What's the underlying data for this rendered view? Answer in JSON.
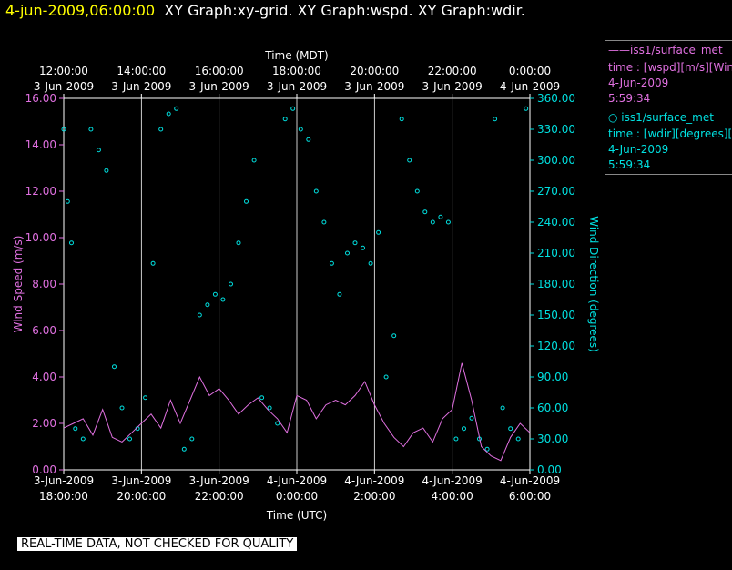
{
  "header": {
    "time": "4-jun-2009,06:00:00",
    "graphs": "XY Graph:xy-grid.  XY Graph:wspd.  XY Graph:wdir."
  },
  "legend": {
    "series1": {
      "name": "iss1/surface_met",
      "var": "time : [wspd][m/s][Wind",
      "date": "4-Jun-2009",
      "time": "5:59:34"
    },
    "series2": {
      "name": "iss1/surface_met",
      "var": "time : [wdir][degrees][V",
      "date": "4-Jun-2009",
      "time": "5:59:34"
    }
  },
  "footer": {
    "note": "REAL-TIME DATA, NOT CHECKED FOR QUALITY"
  },
  "colors": {
    "wspd": "#e070e0",
    "wdir": "#00e0e0",
    "frame": "#ffffff"
  },
  "chart_data": {
    "type": "line",
    "x_top_label": "Time (MDT)",
    "x_bottom_label": "Time (UTC)",
    "ylabel_left": "Wind Speed (m/s)",
    "ylabel_right": "Wind Direction (degrees)",
    "ylim_left": [
      0,
      16
    ],
    "ylim_right": [
      0,
      360
    ],
    "xlim_hours": [
      0,
      12
    ],
    "top_ticks": [
      {
        "t": "12:00:00",
        "d": "3-Jun-2009"
      },
      {
        "t": "14:00:00",
        "d": "3-Jun-2009"
      },
      {
        "t": "16:00:00",
        "d": "3-Jun-2009"
      },
      {
        "t": "18:00:00",
        "d": "3-Jun-2009"
      },
      {
        "t": "20:00:00",
        "d": "3-Jun-2009"
      },
      {
        "t": "22:00:00",
        "d": "3-Jun-2009"
      },
      {
        "t": "0:00:00",
        "d": "4-Jun-2009"
      }
    ],
    "bottom_ticks": [
      {
        "d": "3-Jun-2009",
        "t": "18:00:00"
      },
      {
        "d": "3-Jun-2009",
        "t": "20:00:00"
      },
      {
        "d": "3-Jun-2009",
        "t": "22:00:00"
      },
      {
        "d": "4-Jun-2009",
        "t": "0:00:00"
      },
      {
        "d": "4-Jun-2009",
        "t": "2:00:00"
      },
      {
        "d": "4-Jun-2009",
        "t": "4:00:00"
      },
      {
        "d": "4-Jun-2009",
        "t": "6:00:00"
      }
    ],
    "left_ticks": [
      "0.00",
      "2.00",
      "4.00",
      "6.00",
      "8.00",
      "10.00",
      "12.00",
      "14.00",
      "16.00"
    ],
    "right_ticks": [
      "0.00",
      "30.00",
      "60.00",
      "90.00",
      "120.00",
      "150.00",
      "180.00",
      "210.00",
      "240.00",
      "270.00",
      "300.00",
      "330.00",
      "360.00"
    ],
    "series": [
      {
        "name": "iss1/surface_met wspd",
        "axis": "left",
        "style": "line",
        "x": [
          0,
          0.25,
          0.5,
          0.75,
          1,
          1.25,
          1.5,
          1.75,
          2,
          2.25,
          2.5,
          2.75,
          3,
          3.25,
          3.5,
          3.75,
          4,
          4.25,
          4.5,
          4.75,
          5,
          5.25,
          5.5,
          5.75,
          6,
          6.25,
          6.5,
          6.75,
          7,
          7.25,
          7.5,
          7.75,
          8,
          8.25,
          8.5,
          8.75,
          9,
          9.25,
          9.5,
          9.75,
          10,
          10.25,
          10.5,
          10.75,
          11,
          11.25,
          11.5,
          11.75,
          12
        ],
        "y": [
          1.8,
          2.0,
          2.2,
          1.5,
          2.6,
          1.4,
          1.2,
          1.6,
          2.0,
          2.4,
          1.8,
          3.0,
          2.0,
          3.0,
          4.0,
          3.2,
          3.5,
          3.0,
          2.4,
          2.8,
          3.1,
          2.6,
          2.2,
          1.6,
          3.2,
          3.0,
          2.2,
          2.8,
          3.0,
          2.8,
          3.2,
          3.8,
          2.8,
          2.0,
          1.4,
          1.0,
          1.6,
          1.8,
          1.2,
          2.2,
          2.6,
          4.6,
          3.0,
          1.0,
          0.6,
          0.4,
          1.4,
          2.0,
          1.6
        ]
      },
      {
        "name": "iss1/surface_met wdir",
        "axis": "right",
        "style": "scatter",
        "x": [
          0,
          0.1,
          0.2,
          0.3,
          0.5,
          0.7,
          0.9,
          1.1,
          1.3,
          1.5,
          1.7,
          1.9,
          2.1,
          2.3,
          2.5,
          2.7,
          2.9,
          3.1,
          3.3,
          3.5,
          3.7,
          3.9,
          4.1,
          4.3,
          4.5,
          4.7,
          4.9,
          5.1,
          5.3,
          5.5,
          5.7,
          5.9,
          6.1,
          6.3,
          6.5,
          6.7,
          6.9,
          7.1,
          7.3,
          7.5,
          7.7,
          7.9,
          8.1,
          8.3,
          8.5,
          8.7,
          8.9,
          9.1,
          9.3,
          9.5,
          9.7,
          9.9,
          10.1,
          10.3,
          10.5,
          10.7,
          10.9,
          11.1,
          11.3,
          11.5,
          11.7,
          11.9
        ],
        "y": [
          330,
          260,
          220,
          40,
          30,
          330,
          310,
          290,
          100,
          60,
          30,
          40,
          70,
          200,
          330,
          345,
          350,
          20,
          30,
          150,
          160,
          170,
          165,
          180,
          220,
          260,
          300,
          70,
          60,
          45,
          340,
          350,
          330,
          320,
          270,
          240,
          200,
          170,
          210,
          220,
          215,
          200,
          230,
          90,
          130,
          340,
          300,
          270,
          250,
          240,
          245,
          240,
          30,
          40,
          50,
          30,
          20,
          340,
          60,
          40,
          30,
          350
        ]
      }
    ]
  }
}
